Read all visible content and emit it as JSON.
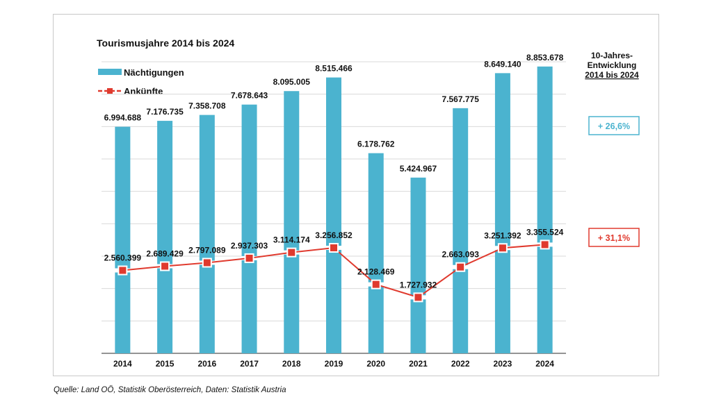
{
  "chart_data": {
    "type": "bar+line",
    "title": "Tourismusjahre 2014 bis 2024",
    "categories": [
      "2014",
      "2015",
      "2016",
      "2017",
      "2018",
      "2019",
      "2020",
      "2021",
      "2022",
      "2023",
      "2024"
    ],
    "series": [
      {
        "name": "Nächtigungen",
        "type": "bar",
        "color": "#4bb3cf",
        "values": [
          6994688,
          7176735,
          7358708,
          7678643,
          8095005,
          8515466,
          6178762,
          5424967,
          7567775,
          8649140,
          8853678
        ],
        "labels": [
          "6.994.688",
          "7.176.735",
          "7.358.708",
          "7.678.643",
          "8.095.005",
          "8.515.466",
          "6.178.762",
          "5.424.967",
          "7.567.775",
          "8.649.140",
          "8.853.678"
        ]
      },
      {
        "name": "Ankünfte",
        "type": "line",
        "color": "#e03a2e",
        "values": [
          2560399,
          2689429,
          2797089,
          2937303,
          3114174,
          3256852,
          2128469,
          1727932,
          2663093,
          3251392,
          3355524
        ],
        "labels": [
          "2.560.399",
          "2.689.429",
          "2.797.089",
          "2.937.303",
          "3.114.174",
          "3.256.852",
          "2.128.469",
          "1.727.932",
          "2.663.093",
          "3.251.392",
          "3.355.524"
        ]
      }
    ],
    "ylim": [
      0,
      9000000
    ],
    "grid": true,
    "legend_placement": "top-left",
    "side_panel": {
      "title_lines": [
        "10-Jahres-",
        "Entwicklung",
        "2014 bis 2024"
      ],
      "badges": [
        {
          "text": "+ 26,6%",
          "series": "Nächtigungen",
          "color": "#4bb3cf"
        },
        {
          "text": "+ 31,1%",
          "series": "Ankünfte",
          "color": "#e03a2e"
        }
      ]
    }
  },
  "source": "Quelle: Land OÖ, Statistik Oberösterreich, Daten: Statistik Austria"
}
